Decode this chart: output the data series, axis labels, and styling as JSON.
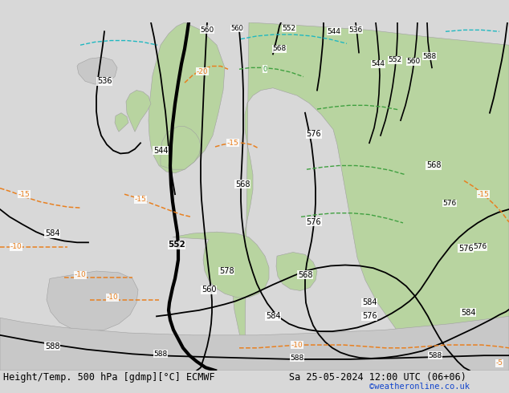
{
  "title_left": "Height/Temp. 500 hPa [gdmp][°C] ECMWF",
  "title_right": "Sa 25-05-2024 12:00 UTC (06+06)",
  "credit": "©weatheronline.co.uk",
  "bg_color": "#d8d8d8",
  "land_green_color": "#b8d4a0",
  "land_gray_color": "#c8c8c8",
  "ocean_color": "#d0d8dc",
  "contour_black": "#000000",
  "contour_orange": "#e88020",
  "contour_green": "#40a040",
  "contour_cyan": "#20b8c0",
  "label_font": 7.5,
  "title_font": 8.5,
  "credit_font": 7.5
}
